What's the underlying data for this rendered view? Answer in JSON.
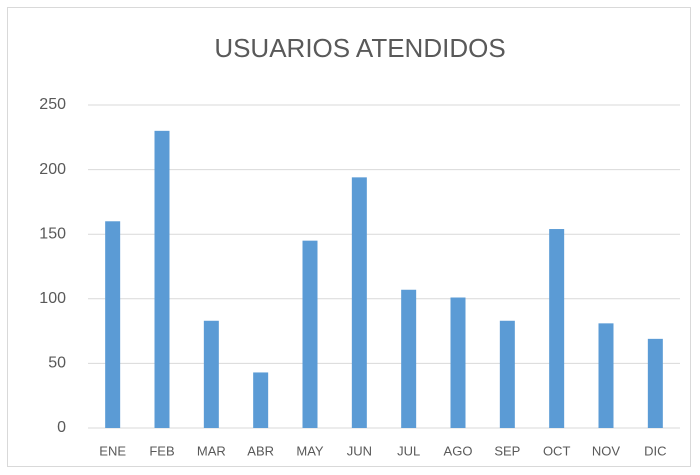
{
  "chart_data": {
    "type": "bar",
    "title": "USUARIOS ATENDIDOS",
    "categories": [
      "ENE",
      "FEB",
      "MAR",
      "ABR",
      "MAY",
      "JUN",
      "JUL",
      "AGO",
      "SEP",
      "OCT",
      "NOV",
      "DIC"
    ],
    "values": [
      160,
      230,
      83,
      43,
      145,
      194,
      107,
      101,
      83,
      154,
      81,
      69
    ],
    "color": "#5b9bd5",
    "ylim": [
      0,
      250
    ],
    "yticks": [
      0,
      50,
      100,
      150,
      200,
      250
    ],
    "grid": true
  }
}
